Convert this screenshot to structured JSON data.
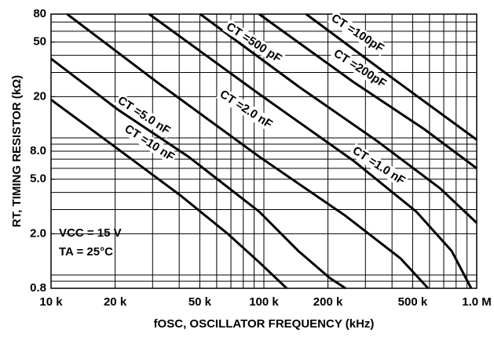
{
  "chart_data": {
    "type": "line",
    "xlabel": "fOSC, OSCILLATOR FREQUENCY (kHz)",
    "ylabel": "RT, TIMING RESISTOR (kΩ)",
    "log_x": true,
    "log_y": true,
    "grid": true,
    "xlim": [
      10,
      1000
    ],
    "ylim": [
      0.8,
      80
    ],
    "xticks": [
      {
        "value": 10,
        "label": "10 k"
      },
      {
        "value": 20,
        "label": "20 k"
      },
      {
        "value": 50,
        "label": "50 k"
      },
      {
        "value": 100,
        "label": "100 k"
      },
      {
        "value": 200,
        "label": "200 k"
      },
      {
        "value": 500,
        "label": "500 k"
      },
      {
        "value": 1000,
        "label": "1.0 M"
      }
    ],
    "yticks": [
      0.8,
      {
        "value": 2,
        "label": "2.0"
      },
      {
        "value": 5,
        "label": "5.0"
      },
      {
        "value": 8,
        "label": "8.0"
      },
      20,
      50,
      80
    ],
    "xgrid": [
      10,
      20,
      30,
      40,
      50,
      60,
      70,
      80,
      90,
      100,
      200,
      300,
      400,
      500,
      600,
      700,
      800,
      900,
      1000
    ],
    "ygrid": [
      0.8,
      0.9,
      1,
      2,
      3,
      4,
      5,
      6,
      7,
      8,
      9,
      10,
      20,
      30,
      40,
      50,
      60,
      70,
      80
    ],
    "annotations": [
      "VCC = 15 V",
      "TA = 25°C"
    ],
    "series": [
      {
        "name": "CT =10 nF",
        "color": "#000000",
        "x": [
          10,
          20.6,
          40.6,
          67.6,
          95,
          128
        ],
        "values": [
          19,
          8.3,
          3.8,
          2.0,
          1.24,
          0.8
        ]
      },
      {
        "name": "CT =5.0 nF",
        "color": "#000000",
        "x": [
          10,
          20.6,
          44.2,
          95,
          145,
          204,
          242
        ],
        "values": [
          37.8,
          16.1,
          7.3,
          2.9,
          1.5,
          0.95,
          0.8
        ]
      },
      {
        "name": "CT =2.0 nF",
        "color": "#000000",
        "x": [
          11.9,
          31.5,
          95,
          242,
          439,
          591
        ],
        "values": [
          80,
          25.5,
          7.3,
          2.7,
          1.32,
          0.8
        ]
      },
      {
        "name": "CT =1.0 nF",
        "color": "#000000",
        "x": [
          28.9,
          95,
          264,
          520,
          762,
          942
        ],
        "values": [
          80,
          20.9,
          6.8,
          2.9,
          1.5,
          0.8
        ]
      },
      {
        "name": "CT =500 pF",
        "color": "#000000",
        "x": [
          50.2,
          145,
          340,
          671,
          1000
        ],
        "values": [
          80,
          23.8,
          9.5,
          4.3,
          2.4
        ]
      },
      {
        "name": "CT =200pF",
        "color": "#000000",
        "x": [
          95,
          264,
          566,
          1000
        ],
        "values": [
          80,
          25.5,
          11.6,
          6.0
        ]
      },
      {
        "name": "CT =100pF",
        "color": "#000000",
        "x": [
          158,
          403,
          1000
        ],
        "values": [
          80,
          27.2,
          9.7
        ]
      }
    ]
  }
}
